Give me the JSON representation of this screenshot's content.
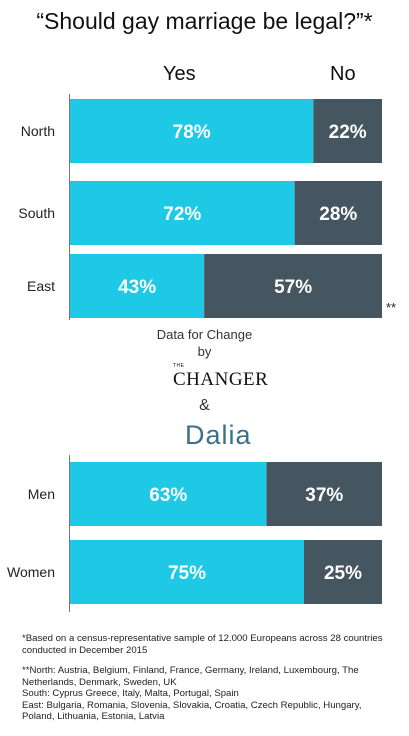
{
  "title": "“Should gay marriage be legal?”*",
  "columns": {
    "yes": "Yes",
    "no": "No"
  },
  "colors": {
    "yes": "#1dc9e5",
    "no": "#465660",
    "axis": "#777777"
  },
  "chart_data": [
    {
      "type": "bar",
      "orientation": "horizontal-stacked-100",
      "categories": [
        "North",
        "South",
        "East"
      ],
      "series": [
        {
          "name": "Yes",
          "values": [
            78,
            72,
            43
          ],
          "labels": [
            "78%",
            "72%",
            "43%"
          ]
        },
        {
          "name": "No",
          "values": [
            22,
            28,
            57
          ],
          "labels": [
            "22%",
            "28%",
            "57%"
          ]
        }
      ],
      "xlim": [
        0,
        100
      ],
      "note": "**"
    },
    {
      "type": "bar",
      "orientation": "horizontal-stacked-100",
      "categories": [
        "Men",
        "Women"
      ],
      "series": [
        {
          "name": "Yes",
          "values": [
            63,
            75
          ],
          "labels": [
            "63%",
            "75%"
          ]
        },
        {
          "name": "No",
          "values": [
            37,
            25
          ],
          "labels": [
            "37%",
            "25%"
          ]
        }
      ],
      "xlim": [
        0,
        100
      ]
    }
  ],
  "sponsor": {
    "line1": "Data for Change",
    "line2": "by",
    "the": "THE",
    "changer": "CHANGER",
    "amp": "&",
    "dalia": "Dalia"
  },
  "footnotes": {
    "sample": "*Based on a census-representative sample of 12.000 Europeans across 28 countries conducted in December 2015",
    "north": "**North: Austria, Belgium, Finland, France, Germany, Ireland, Luxembourg, The Netherlands, Denmark, Sweden, UK",
    "south": "South: Cyprus Greece, Italy, Malta, Portugal, Spain",
    "east": "East: Bulgaria, Romania, Slovenia, Slovakia, Croatia, Czech Republic, Hungary, Poland, Lithuania, Estonia, Latvia"
  }
}
